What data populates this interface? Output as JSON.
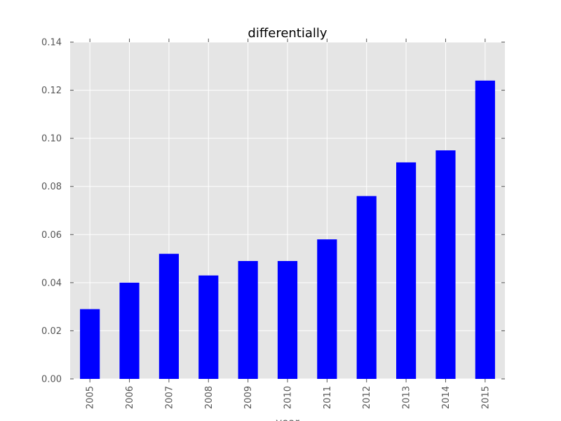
{
  "chart_data": {
    "type": "bar",
    "title": "differentially",
    "xlabel": "year",
    "ylabel": "",
    "categories": [
      "2005",
      "2006",
      "2007",
      "2008",
      "2009",
      "2010",
      "2011",
      "2012",
      "2013",
      "2014",
      "2015"
    ],
    "values": [
      0.029,
      0.04,
      0.052,
      0.043,
      0.049,
      0.049,
      0.058,
      0.076,
      0.09,
      0.095,
      0.124
    ],
    "ylim": [
      0,
      0.14
    ],
    "yticks": [
      "0.00",
      "0.02",
      "0.04",
      "0.06",
      "0.08",
      "0.10",
      "0.12",
      "0.14"
    ],
    "grid": true,
    "colors": {
      "bar": "#0000ff",
      "plot_background": "#e5e5e5",
      "grid": "#ffffff",
      "tick_text": "#555555"
    }
  }
}
